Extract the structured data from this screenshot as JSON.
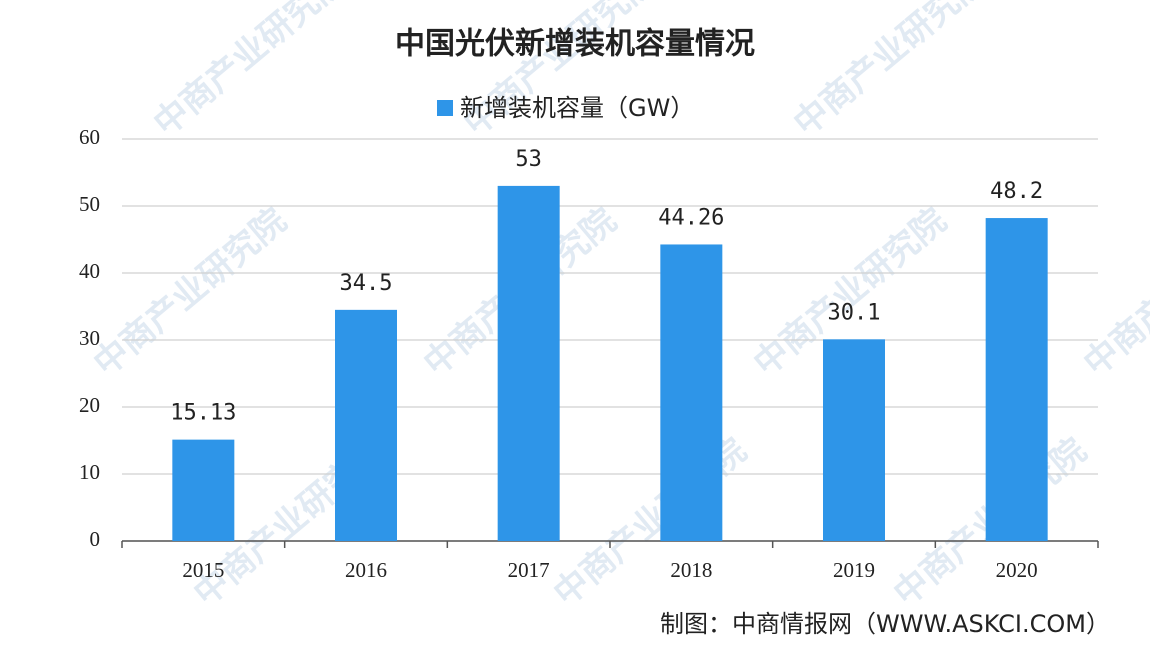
{
  "chart_data": {
    "type": "bar",
    "title": "中国光伏新增装机容量情况",
    "categories": [
      "2015",
      "2016",
      "2017",
      "2018",
      "2019",
      "2020"
    ],
    "series": [
      {
        "name": "新增装机容量（GW）",
        "color": "#2e95e8",
        "values": [
          15.13,
          34.5,
          53,
          44.26,
          30.1,
          48.2
        ]
      }
    ],
    "ylim": [
      0,
      60
    ],
    "yticks": [
      0,
      10,
      20,
      30,
      40,
      50,
      60
    ],
    "grid": true,
    "source": "制图：中商情报网（WWW.ASKCI.COM）",
    "watermark": "中商产业研究院"
  }
}
